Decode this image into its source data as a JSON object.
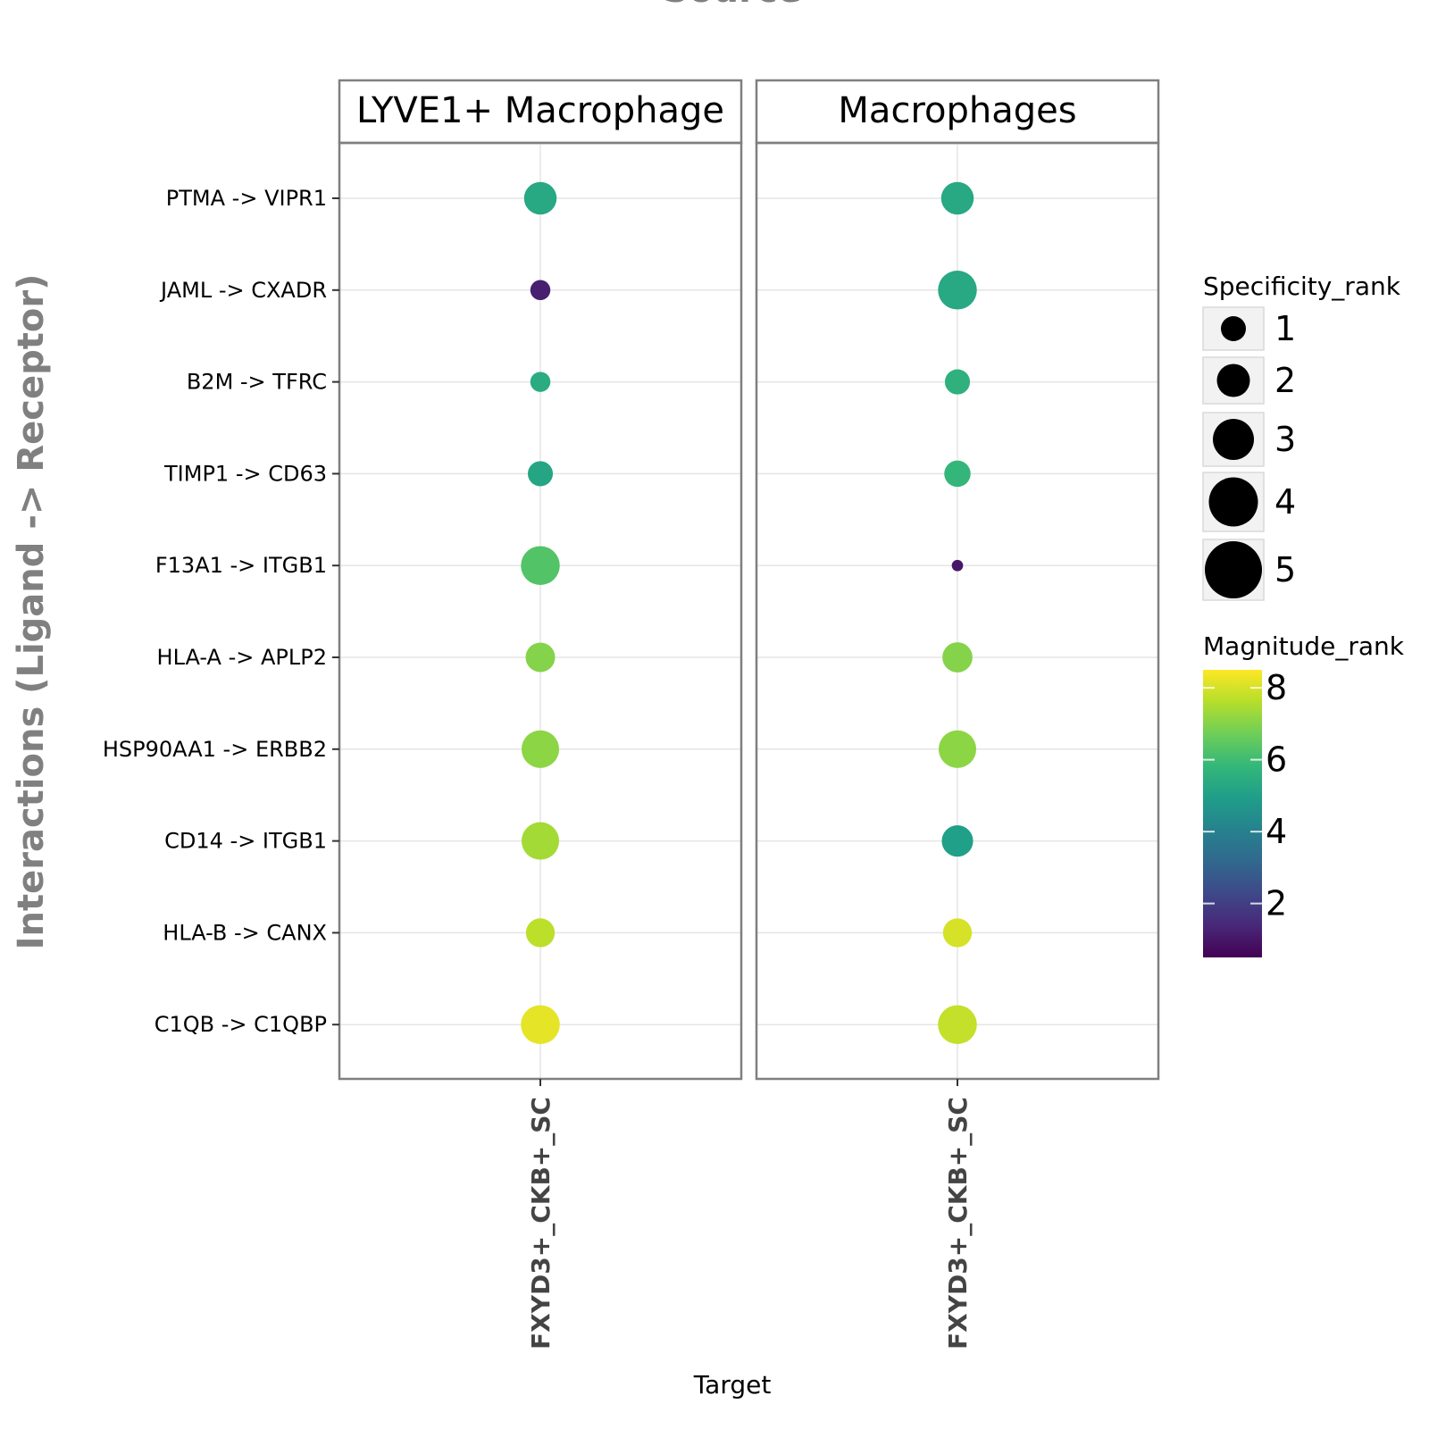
{
  "chart_data": {
    "type": "scatter",
    "title": "Source",
    "xlabel": "Target",
    "ylabel": "Interactions (Ligand -> Receptor)",
    "facets": [
      "LYVE1+ Macrophage",
      "Macrophages"
    ],
    "x_categories": [
      "FXYD3+_CKB+_SC"
    ],
    "interactions": [
      "PTMA -> VIPR1",
      "JAML -> CXADR",
      "B2M -> TFRC",
      "TIMP1 -> CD63",
      "F13A1 -> ITGB1",
      "HLA-A -> APLP2",
      "HSP90AA1 -> ERBB2",
      "CD14 -> ITGB1",
      "HLA-B -> CANX",
      "C1QB -> C1QBP"
    ],
    "points": [
      {
        "facet": "LYVE1+ Macrophage",
        "x": "FXYD3+_CKB+_SC",
        "interaction": "PTMA -> VIPR1",
        "specificity_rank": 4.0,
        "magnitude_rank": 5.3
      },
      {
        "facet": "LYVE1+ Macrophage",
        "x": "FXYD3+_CKB+_SC",
        "interaction": "JAML -> CXADR",
        "specificity_rank": 2.0,
        "magnitude_rank": 1.2
      },
      {
        "facet": "LYVE1+ Macrophage",
        "x": "FXYD3+_CKB+_SC",
        "interaction": "B2M -> TFRC",
        "specificity_rank": 2.0,
        "magnitude_rank": 5.4
      },
      {
        "facet": "LYVE1+ Macrophage",
        "x": "FXYD3+_CKB+_SC",
        "interaction": "TIMP1 -> CD63",
        "specificity_rank": 2.8,
        "magnitude_rank": 5.2
      },
      {
        "facet": "LYVE1+ Macrophage",
        "x": "FXYD3+_CKB+_SC",
        "interaction": "F13A1 -> ITGB1",
        "specificity_rank": 5.0,
        "magnitude_rank": 6.3
      },
      {
        "facet": "LYVE1+ Macrophage",
        "x": "FXYD3+_CKB+_SC",
        "interaction": "HLA-A -> APLP2",
        "specificity_rank": 3.5,
        "magnitude_rank": 7.0
      },
      {
        "facet": "LYVE1+ Macrophage",
        "x": "FXYD3+_CKB+_SC",
        "interaction": "HSP90AA1 -> ERBB2",
        "specificity_rank": 4.8,
        "magnitude_rank": 7.1
      },
      {
        "facet": "LYVE1+ Macrophage",
        "x": "FXYD3+_CKB+_SC",
        "interaction": "CD14 -> ITGB1",
        "specificity_rank": 4.8,
        "magnitude_rank": 7.4
      },
      {
        "facet": "LYVE1+ Macrophage",
        "x": "FXYD3+_CKB+_SC",
        "interaction": "HLA-B -> CANX",
        "specificity_rank": 3.4,
        "magnitude_rank": 7.7
      },
      {
        "facet": "LYVE1+ Macrophage",
        "x": "FXYD3+_CKB+_SC",
        "interaction": "C1QB -> C1QBP",
        "specificity_rank": 5.0,
        "magnitude_rank": 8.2
      },
      {
        "facet": "Macrophages",
        "x": "FXYD3+_CKB+_SC",
        "interaction": "PTMA -> VIPR1",
        "specificity_rank": 4.0,
        "magnitude_rank": 5.3
      },
      {
        "facet": "Macrophages",
        "x": "FXYD3+_CKB+_SC",
        "interaction": "JAML -> CXADR",
        "specificity_rank": 5.0,
        "magnitude_rank": 5.3
      },
      {
        "facet": "Macrophages",
        "x": "FXYD3+_CKB+_SC",
        "interaction": "B2M -> TFRC",
        "specificity_rank": 2.8,
        "magnitude_rank": 5.6
      },
      {
        "facet": "Macrophages",
        "x": "FXYD3+_CKB+_SC",
        "interaction": "TIMP1 -> CD63",
        "specificity_rank": 3.0,
        "magnitude_rank": 5.8
      },
      {
        "facet": "Macrophages",
        "x": "FXYD3+_CKB+_SC",
        "interaction": "F13A1 -> ITGB1",
        "specificity_rank": 0.6,
        "magnitude_rank": 1.0
      },
      {
        "facet": "Macrophages",
        "x": "FXYD3+_CKB+_SC",
        "interaction": "HLA-A -> APLP2",
        "specificity_rank": 3.6,
        "magnitude_rank": 7.0
      },
      {
        "facet": "Macrophages",
        "x": "FXYD3+_CKB+_SC",
        "interaction": "HSP90AA1 -> ERBB2",
        "specificity_rank": 4.8,
        "magnitude_rank": 7.1
      },
      {
        "facet": "Macrophages",
        "x": "FXYD3+_CKB+_SC",
        "interaction": "CD14 -> ITGB1",
        "specificity_rank": 3.8,
        "magnitude_rank": 5.0
      },
      {
        "facet": "Macrophages",
        "x": "FXYD3+_CKB+_SC",
        "interaction": "HLA-B -> CANX",
        "specificity_rank": 3.4,
        "magnitude_rank": 8.0
      },
      {
        "facet": "Macrophages",
        "x": "FXYD3+_CKB+_SC",
        "interaction": "C1QB -> C1QBP",
        "specificity_rank": 5.0,
        "magnitude_rank": 7.8
      }
    ],
    "size_legend": {
      "title": "Specificity_rank",
      "values": [
        1,
        2,
        3,
        4,
        5
      ]
    },
    "color_legend": {
      "title": "Magnitude_rank",
      "ticks": [
        2,
        4,
        6,
        8
      ],
      "range": [
        0.5,
        8.5
      ],
      "colormap": "viridis"
    },
    "grid": true
  }
}
